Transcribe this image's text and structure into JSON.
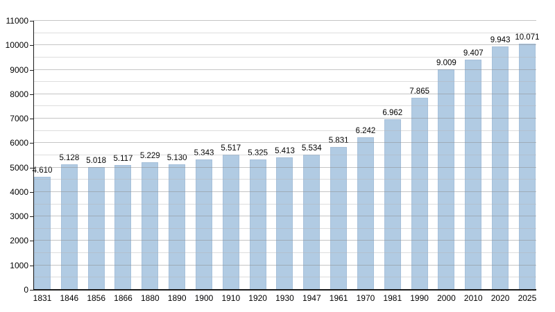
{
  "chart_data": {
    "type": "bar",
    "title": "",
    "xlabel": "",
    "ylabel": "",
    "categories": [
      "1831",
      "1846",
      "1856",
      "1866",
      "1880",
      "1890",
      "1900",
      "1910",
      "1920",
      "1930",
      "1947",
      "1961",
      "1970",
      "1981",
      "1990",
      "2000",
      "2010",
      "2020",
      "2025"
    ],
    "values": [
      4610,
      5128,
      5018,
      5117,
      5229,
      5130,
      5343,
      5517,
      5325,
      5413,
      5534,
      5831,
      6242,
      6962,
      7865,
      9009,
      9407,
      9943,
      10071
    ],
    "value_labels": [
      "4.610",
      "5.128",
      "5.018",
      "5.117",
      "5.229",
      "5.130",
      "5.343",
      "5.517",
      "5.325",
      "5.413",
      "5.534",
      "5.831",
      "6.242",
      "6.962",
      "7.865",
      "9.009",
      "9.407",
      "9.943",
      "10.071"
    ],
    "ylim": [
      0,
      11000
    ],
    "y_major_step": 1000,
    "y_minor_step": 500,
    "y_tick_labels": [
      "0",
      "1000",
      "2000",
      "3000",
      "4000",
      "5000",
      "6000",
      "7000",
      "8000",
      "9000",
      "10000",
      "11000"
    ],
    "grid": "major-and-minor-horizontal",
    "legend": "none",
    "colors": {
      "background": "#ffffff",
      "bar_fill": "#b1cbe3",
      "bar_border": "#a6c0da",
      "grid_major": "#8c8c8c",
      "grid_minor": "#b4b4b4",
      "axis": "#1a1a1a",
      "text": "#000000"
    }
  }
}
